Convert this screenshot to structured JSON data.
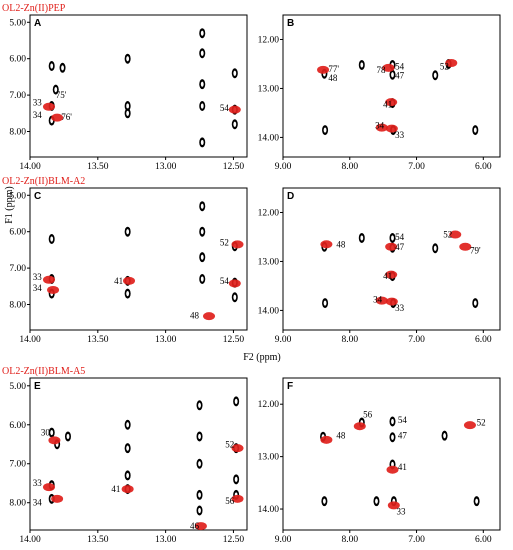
{
  "figure": {
    "f1_label": "F1 (ppm)",
    "f2_label": "F2 (ppm)",
    "row_titles": [
      "OL2-Zn(II)PEP",
      "OL2-Zn(II)BLM-A2",
      "OL2-Zn(II)BLM-A5"
    ],
    "colors": {
      "complex": "#000000",
      "free": "#e0201b"
    }
  },
  "chart_data": [
    {
      "panel": "A",
      "type": "scatter",
      "title": "OL2-Zn(II)PEP",
      "xlim": [
        14.0,
        12.4
      ],
      "ylim": [
        4.8,
        8.7
      ],
      "xticks": [
        "14.00",
        "13.50",
        "13.00",
        "12.50"
      ],
      "yticks": [
        "5.00",
        "6.00",
        "7.00",
        "8.00"
      ],
      "black_peaks": [
        [
          13.84,
          6.2
        ],
        [
          13.84,
          7.3
        ],
        [
          13.84,
          7.7
        ],
        [
          13.81,
          6.85
        ],
        [
          13.76,
          6.25
        ],
        [
          13.28,
          6.0
        ],
        [
          13.28,
          7.3
        ],
        [
          13.28,
          7.5
        ],
        [
          12.73,
          5.3
        ],
        [
          12.73,
          5.85
        ],
        [
          12.73,
          6.7
        ],
        [
          12.73,
          7.3
        ],
        [
          12.73,
          8.3
        ],
        [
          12.49,
          6.4
        ],
        [
          12.49,
          7.4
        ],
        [
          12.49,
          7.8
        ]
      ],
      "red_peaks": [
        [
          13.86,
          7.32
        ],
        [
          13.8,
          7.62
        ],
        [
          12.49,
          7.4
        ]
      ],
      "labels": [
        {
          "text": "33",
          "x": 13.98,
          "y": 7.2
        },
        {
          "text": "34",
          "x": 13.98,
          "y": 7.55
        },
        {
          "text": "75'",
          "x": 13.81,
          "y": 7.0
        },
        {
          "text": "76'",
          "x": 13.77,
          "y": 7.6
        },
        {
          "text": "54",
          "x": 12.6,
          "y": 7.35
        }
      ]
    },
    {
      "panel": "B",
      "type": "scatter",
      "title": "",
      "xlim": [
        9.0,
        5.75
      ],
      "ylim": [
        11.5,
        14.4
      ],
      "xticks": [
        "9.00",
        "8.00",
        "7.00",
        "6.00"
      ],
      "yticks": [
        "12.00",
        "13.00",
        "14.00"
      ],
      "black_peaks": [
        [
          8.38,
          12.7
        ],
        [
          8.37,
          13.85
        ],
        [
          7.82,
          12.52
        ],
        [
          7.36,
          12.52
        ],
        [
          7.36,
          12.72
        ],
        [
          7.36,
          13.3
        ],
        [
          7.35,
          13.85
        ],
        [
          6.52,
          12.5
        ],
        [
          6.72,
          12.73
        ],
        [
          6.12,
          13.85
        ]
      ],
      "red_peaks": [
        [
          8.4,
          12.62
        ],
        [
          7.42,
          12.58
        ],
        [
          7.38,
          13.28
        ],
        [
          7.37,
          13.82
        ],
        [
          7.52,
          13.8
        ],
        [
          6.48,
          12.48
        ]
      ],
      "labels": [
        {
          "text": "77'",
          "x": 8.32,
          "y": 12.6
        },
        {
          "text": "48",
          "x": 8.32,
          "y": 12.79
        },
        {
          "text": "78",
          "x": 7.6,
          "y": 12.62
        },
        {
          "text": "54",
          "x": 7.32,
          "y": 12.55
        },
        {
          "text": "47",
          "x": 7.32,
          "y": 12.74
        },
        {
          "text": "52",
          "x": 6.65,
          "y": 12.55
        },
        {
          "text": "41",
          "x": 7.5,
          "y": 13.33
        },
        {
          "text": "34",
          "x": 7.62,
          "y": 13.76
        },
        {
          "text": "33",
          "x": 7.32,
          "y": 13.95
        }
      ]
    },
    {
      "panel": "C",
      "type": "scatter",
      "title": "OL2-Zn(II)BLM-A2",
      "xlim": [
        14.0,
        12.4
      ],
      "ylim": [
        4.8,
        8.7
      ],
      "xticks": [
        "14.00",
        "13.50",
        "13.00",
        "12.50"
      ],
      "yticks": [
        "5.00",
        "6.00",
        "7.00",
        "8.00"
      ],
      "black_peaks": [
        [
          13.84,
          6.2
        ],
        [
          13.84,
          7.3
        ],
        [
          13.84,
          7.7
        ],
        [
          13.28,
          6.0
        ],
        [
          13.28,
          7.35
        ],
        [
          13.28,
          7.7
        ],
        [
          12.73,
          5.3
        ],
        [
          12.73,
          6.0
        ],
        [
          12.73,
          6.7
        ],
        [
          12.73,
          7.3
        ],
        [
          12.49,
          6.4
        ],
        [
          12.49,
          7.4
        ],
        [
          12.49,
          7.8
        ]
      ],
      "red_peaks": [
        [
          13.86,
          7.32
        ],
        [
          13.83,
          7.6
        ],
        [
          13.27,
          7.35
        ],
        [
          12.68,
          8.32
        ],
        [
          12.47,
          6.35
        ],
        [
          12.49,
          7.42
        ]
      ],
      "labels": [
        {
          "text": "33",
          "x": 13.98,
          "y": 7.25
        },
        {
          "text": "34",
          "x": 13.98,
          "y": 7.55
        },
        {
          "text": "41",
          "x": 13.38,
          "y": 7.35
        },
        {
          "text": "48",
          "x": 12.82,
          "y": 8.3
        },
        {
          "text": "52",
          "x": 12.6,
          "y": 6.3
        },
        {
          "text": "54",
          "x": 12.6,
          "y": 7.35
        }
      ]
    },
    {
      "panel": "D",
      "type": "scatter",
      "title": "",
      "xlim": [
        9.0,
        5.75
      ],
      "ylim": [
        11.5,
        14.4
      ],
      "xticks": [
        "9.00",
        "8.00",
        "7.00",
        "6.00"
      ],
      "yticks": [
        "12.00",
        "13.00",
        "14.00"
      ],
      "black_peaks": [
        [
          8.38,
          12.7
        ],
        [
          8.37,
          13.85
        ],
        [
          7.82,
          12.52
        ],
        [
          7.36,
          12.52
        ],
        [
          7.36,
          12.72
        ],
        [
          7.36,
          13.3
        ],
        [
          7.35,
          13.85
        ],
        [
          6.72,
          12.73
        ],
        [
          6.12,
          13.85
        ]
      ],
      "red_peaks": [
        [
          8.35,
          12.65
        ],
        [
          7.38,
          12.7
        ],
        [
          7.38,
          13.27
        ],
        [
          7.37,
          13.82
        ],
        [
          7.52,
          13.8
        ],
        [
          6.42,
          12.45
        ],
        [
          6.27,
          12.7
        ]
      ],
      "labels": [
        {
          "text": "48",
          "x": 8.2,
          "y": 12.65
        },
        {
          "text": "54",
          "x": 7.32,
          "y": 12.5
        },
        {
          "text": "47",
          "x": 7.32,
          "y": 12.7
        },
        {
          "text": "52",
          "x": 6.6,
          "y": 12.45
        },
        {
          "text": "79'",
          "x": 6.2,
          "y": 12.78
        },
        {
          "text": "41",
          "x": 7.5,
          "y": 13.3
        },
        {
          "text": "34",
          "x": 7.65,
          "y": 13.78
        },
        {
          "text": "33",
          "x": 7.32,
          "y": 13.95
        }
      ]
    },
    {
      "panel": "E",
      "type": "scatter",
      "title": "OL2-Zn(II)BLM-A5",
      "xlim": [
        14.0,
        12.4
      ],
      "ylim": [
        4.8,
        8.7
      ],
      "xticks": [
        "14.00",
        "13.50",
        "13.00",
        "12.50"
      ],
      "yticks": [
        "5.00",
        "6.00",
        "7.00",
        "8.00"
      ],
      "black_peaks": [
        [
          13.84,
          6.2
        ],
        [
          13.8,
          6.5
        ],
        [
          13.84,
          7.55
        ],
        [
          13.84,
          7.9
        ],
        [
          13.72,
          6.3
        ],
        [
          13.28,
          6.0
        ],
        [
          13.28,
          6.6
        ],
        [
          13.28,
          7.3
        ],
        [
          13.28,
          7.65
        ],
        [
          12.75,
          5.5
        ],
        [
          12.75,
          6.3
        ],
        [
          12.75,
          7.0
        ],
        [
          12.75,
          7.8
        ],
        [
          12.75,
          8.2
        ],
        [
          12.48,
          5.4
        ],
        [
          12.48,
          6.6
        ],
        [
          12.48,
          7.4
        ],
        [
          12.48,
          7.8
        ]
      ],
      "red_peaks": [
        [
          13.86,
          7.6
        ],
        [
          13.8,
          7.9
        ],
        [
          13.82,
          6.4
        ],
        [
          13.28,
          7.65
        ],
        [
          12.74,
          8.6
        ],
        [
          12.47,
          6.6
        ],
        [
          12.47,
          7.9
        ]
      ],
      "labels": [
        {
          "text": "30",
          "x": 13.92,
          "y": 6.2
        },
        {
          "text": "33",
          "x": 13.98,
          "y": 7.5
        },
        {
          "text": "34",
          "x": 13.98,
          "y": 8.0
        },
        {
          "text": "41",
          "x": 13.4,
          "y": 7.65
        },
        {
          "text": "46",
          "x": 12.82,
          "y": 8.6
        },
        {
          "text": "52",
          "x": 12.56,
          "y": 6.5
        },
        {
          "text": "56",
          "x": 12.56,
          "y": 7.95
        }
      ]
    },
    {
      "panel": "F",
      "type": "scatter",
      "title": "",
      "xlim": [
        9.0,
        5.75
      ],
      "ylim": [
        11.5,
        14.4
      ],
      "xticks": [
        "9.00",
        "8.00",
        "7.00",
        "6.00"
      ],
      "yticks": [
        "12.00",
        "13.00",
        "14.00"
      ],
      "black_peaks": [
        [
          8.4,
          12.62
        ],
        [
          8.38,
          13.85
        ],
        [
          7.82,
          12.35
        ],
        [
          7.36,
          12.33
        ],
        [
          7.36,
          12.63
        ],
        [
          7.36,
          13.15
        ],
        [
          7.34,
          13.85
        ],
        [
          7.6,
          13.85
        ],
        [
          6.58,
          12.6
        ],
        [
          6.1,
          13.85
        ]
      ],
      "red_peaks": [
        [
          8.35,
          12.68
        ],
        [
          7.85,
          12.42
        ],
        [
          7.36,
          13.25
        ],
        [
          7.34,
          13.93
        ],
        [
          6.2,
          12.4
        ]
      ],
      "labels": [
        {
          "text": "48",
          "x": 8.2,
          "y": 12.6
        },
        {
          "text": "56",
          "x": 7.8,
          "y": 12.2
        },
        {
          "text": "54",
          "x": 7.28,
          "y": 12.3
        },
        {
          "text": "47",
          "x": 7.28,
          "y": 12.6
        },
        {
          "text": "52",
          "x": 6.1,
          "y": 12.35
        },
        {
          "text": "41",
          "x": 7.28,
          "y": 13.2
        },
        {
          "text": "33",
          "x": 7.3,
          "y": 14.05
        }
      ]
    }
  ]
}
